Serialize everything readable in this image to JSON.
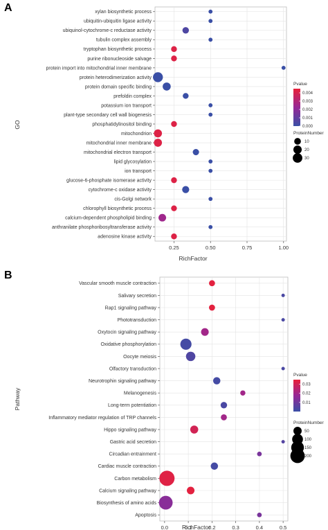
{
  "chart_data": [
    {
      "type": "scatter",
      "panel_label": "A",
      "xlabel": "RichFactor",
      "ylabel": "GO",
      "xlim": [
        0.12,
        1.02
      ],
      "x_ticks": [
        "0.25",
        "0.50",
        "0.75",
        "1.00"
      ],
      "x_tick_values": [
        0.25,
        0.5,
        0.75,
        1.0
      ],
      "grid": true,
      "legend_placement": "right",
      "color_legend": {
        "title": "Pvalue",
        "range": [
          0,
          0.0045
        ],
        "ticks": [
          "0.004",
          "0.003",
          "0.002",
          "0.001",
          "0.000"
        ],
        "tick_values": [
          0.004,
          0.003,
          0.002,
          0.001,
          0.0
        ],
        "low_color": "#3a4fa6",
        "high_color": "#e8213a"
      },
      "size_legend": {
        "title": "ProteinNumber",
        "labels": [
          "10",
          "20",
          "30"
        ],
        "values": [
          10,
          20,
          30
        ]
      },
      "points": [
        {
          "term": "xylan biosynthetic process",
          "x": 0.5,
          "pvalue": 0.0,
          "count": 1
        },
        {
          "term": "ubiquitin-ubiquitin ligase activity",
          "x": 0.5,
          "pvalue": 0.0,
          "count": 1
        },
        {
          "term": "ubiquinol-cytochrome-c reductase activity",
          "x": 0.33,
          "pvalue": 0.0005,
          "count": 9
        },
        {
          "term": "tubulin complex assembly",
          "x": 0.5,
          "pvalue": 0.0,
          "count": 1
        },
        {
          "term": "tryptophan biosynthetic process",
          "x": 0.25,
          "pvalue": 0.0042,
          "count": 6
        },
        {
          "term": "purine ribonucleoside salvage",
          "x": 0.25,
          "pvalue": 0.0042,
          "count": 6
        },
        {
          "term": "protein import into mitochondrial inner membrane",
          "x": 1.0,
          "pvalue": 0.0,
          "count": 1
        },
        {
          "term": "protein heterodimerization activity",
          "x": 0.14,
          "pvalue": 0.0,
          "count": 33
        },
        {
          "term": "protein domain specific binding",
          "x": 0.2,
          "pvalue": 0.0,
          "count": 18
        },
        {
          "term": "prefoldin complex",
          "x": 0.33,
          "pvalue": 0.0,
          "count": 6
        },
        {
          "term": "potassium ion transport",
          "x": 0.5,
          "pvalue": 0.0,
          "count": 1
        },
        {
          "term": "plant-type secondary cell wall biogenesis",
          "x": 0.5,
          "pvalue": 0.0,
          "count": 1
        },
        {
          "term": "phosphatidylinositol binding",
          "x": 0.25,
          "pvalue": 0.0042,
          "count": 6
        },
        {
          "term": "mitochondrion",
          "x": 0.14,
          "pvalue": 0.0042,
          "count": 18
        },
        {
          "term": "mitochondrial inner membrane",
          "x": 0.14,
          "pvalue": 0.0042,
          "count": 18
        },
        {
          "term": "mitochondrial electron transport",
          "x": 0.4,
          "pvalue": 0.0,
          "count": 8
        },
        {
          "term": "lipid glycosylation",
          "x": 0.5,
          "pvalue": 0.0,
          "count": 1
        },
        {
          "term": "ion transport",
          "x": 0.5,
          "pvalue": 0.0,
          "count": 1
        },
        {
          "term": "glucose-6-phosphate isomerase activity",
          "x": 0.25,
          "pvalue": 0.0042,
          "count": 6
        },
        {
          "term": "cytochrome-c oxidase activity",
          "x": 0.33,
          "pvalue": 0.0,
          "count": 12
        },
        {
          "term": "cis-Golgi network",
          "x": 0.5,
          "pvalue": 0.0,
          "count": 1
        },
        {
          "term": "chlorophyll biosynthetic process",
          "x": 0.25,
          "pvalue": 0.0042,
          "count": 6
        },
        {
          "term": "calcium-dependent phospholipid binding",
          "x": 0.17,
          "pvalue": 0.0025,
          "count": 15
        },
        {
          "term": "anthranilate phosphoribosyltransferase activity",
          "x": 0.5,
          "pvalue": 0.0,
          "count": 1
        },
        {
          "term": "adenosine kinase activity",
          "x": 0.25,
          "pvalue": 0.0042,
          "count": 6
        }
      ]
    },
    {
      "type": "scatter",
      "panel_label": "B",
      "xlabel": "RichFactor",
      "ylabel": "Pathway",
      "xlim": [
        -0.02,
        0.52
      ],
      "x_ticks": [
        "0.0",
        "0.1",
        "0.2",
        "0.3",
        "0.4",
        "0.5"
      ],
      "x_tick_values": [
        0.0,
        0.1,
        0.2,
        0.3,
        0.4,
        0.5
      ],
      "grid": true,
      "legend_placement": "right",
      "color_legend": {
        "title": "Pvalue",
        "range": [
          0.0,
          0.035
        ],
        "ticks": [
          "0.03",
          "0.02",
          "0.01"
        ],
        "tick_values": [
          0.03,
          0.02,
          0.01
        ],
        "low_color": "#3a4fa6",
        "high_color": "#e8213a"
      },
      "size_legend": {
        "title": "ProteinNumber",
        "labels": [
          "50",
          "100",
          "150",
          "200"
        ],
        "values": [
          50,
          100,
          150,
          200
        ]
      },
      "points": [
        {
          "term": "Vascular smooth muscle contraction",
          "x": 0.2,
          "pvalue": 0.034,
          "count": 20
        },
        {
          "term": "Salivary secretion",
          "x": 0.5,
          "pvalue": 0.003,
          "count": 2
        },
        {
          "term": "Rap1 signaling pathway",
          "x": 0.2,
          "pvalue": 0.034,
          "count": 20
        },
        {
          "term": "Phototransduction",
          "x": 0.5,
          "pvalue": 0.003,
          "count": 2
        },
        {
          "term": "Oxytocin signaling pathway",
          "x": 0.17,
          "pvalue": 0.02,
          "count": 40
        },
        {
          "term": "Oxidative phosphorylation",
          "x": 0.09,
          "pvalue": 0.002,
          "count": 110
        },
        {
          "term": "Oocyte meiosis",
          "x": 0.11,
          "pvalue": 0.004,
          "count": 70
        },
        {
          "term": "Olfactory transduction",
          "x": 0.5,
          "pvalue": 0.003,
          "count": 2
        },
        {
          "term": "Neurotrophin signaling pathway",
          "x": 0.22,
          "pvalue": 0.002,
          "count": 35
        },
        {
          "term": "Melanogenesis",
          "x": 0.33,
          "pvalue": 0.02,
          "count": 12
        },
        {
          "term": "Long-term potentiation",
          "x": 0.25,
          "pvalue": 0.003,
          "count": 25
        },
        {
          "term": "Inflammatory mediator regulation of TRP channels",
          "x": 0.25,
          "pvalue": 0.02,
          "count": 20
        },
        {
          "term": "Hippo signaling pathway",
          "x": 0.125,
          "pvalue": 0.03,
          "count": 45
        },
        {
          "term": "Gastric acid secretion",
          "x": 0.5,
          "pvalue": 0.005,
          "count": 2
        },
        {
          "term": "Circadian entrainment",
          "x": 0.4,
          "pvalue": 0.012,
          "count": 8
        },
        {
          "term": "Cardiac muscle contraction",
          "x": 0.21,
          "pvalue": 0.002,
          "count": 35
        },
        {
          "term": "Carbon metabolism",
          "x": 0.01,
          "pvalue": 0.033,
          "count": 230
        },
        {
          "term": "Calcium signaling pathway",
          "x": 0.11,
          "pvalue": 0.034,
          "count": 40
        },
        {
          "term": "Biosynthesis of amino acids",
          "x": 0.005,
          "pvalue": 0.015,
          "count": 180
        },
        {
          "term": "Apoptosis",
          "x": 0.4,
          "pvalue": 0.012,
          "count": 8
        }
      ]
    }
  ]
}
